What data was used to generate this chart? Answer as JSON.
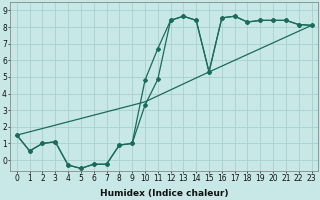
{
  "bg_color": "#c8e8e8",
  "grid_color": "#a8d0d0",
  "line_color": "#1a6b5a",
  "marker_color": "#1a6b5a",
  "xlabel": "Humidex (Indice chaleur)",
  "xlabel_fontsize": 6.5,
  "tick_fontsize": 5.5,
  "xlim": [
    -0.5,
    23.5
  ],
  "ylim": [
    -0.65,
    9.5
  ],
  "xticks": [
    0,
    1,
    2,
    3,
    4,
    5,
    6,
    7,
    8,
    9,
    10,
    11,
    12,
    13,
    14,
    15,
    16,
    17,
    18,
    19,
    20,
    21,
    22,
    23
  ],
  "yticks": [
    0,
    1,
    2,
    3,
    4,
    5,
    6,
    7,
    8,
    9
  ],
  "line1_x": [
    0,
    1,
    2,
    3,
    4,
    5,
    6,
    7,
    8,
    9,
    10,
    11,
    12,
    13,
    14,
    15,
    16,
    17,
    18,
    19,
    20,
    21,
    22,
    23
  ],
  "line1_y": [
    1.5,
    0.55,
    1.0,
    1.1,
    -0.3,
    -0.5,
    -0.25,
    -0.25,
    0.9,
    1.0,
    4.8,
    6.7,
    8.4,
    8.65,
    8.4,
    5.3,
    8.55,
    8.65,
    8.3,
    8.4,
    8.4,
    8.4,
    8.15,
    8.1
  ],
  "line2_x": [
    0,
    1,
    2,
    3,
    4,
    5,
    6,
    7,
    8,
    9,
    10,
    11,
    12,
    13,
    14,
    15,
    16,
    17,
    18,
    19,
    20,
    21,
    22,
    23
  ],
  "line2_y": [
    1.5,
    0.55,
    1.0,
    1.1,
    -0.3,
    -0.5,
    -0.25,
    -0.25,
    0.9,
    1.0,
    3.3,
    4.85,
    8.4,
    8.65,
    8.4,
    5.3,
    8.55,
    8.65,
    8.3,
    8.4,
    8.4,
    8.4,
    8.15,
    8.1
  ],
  "line3_x": [
    0,
    10,
    15,
    23
  ],
  "line3_y": [
    1.5,
    3.5,
    5.3,
    8.1
  ]
}
